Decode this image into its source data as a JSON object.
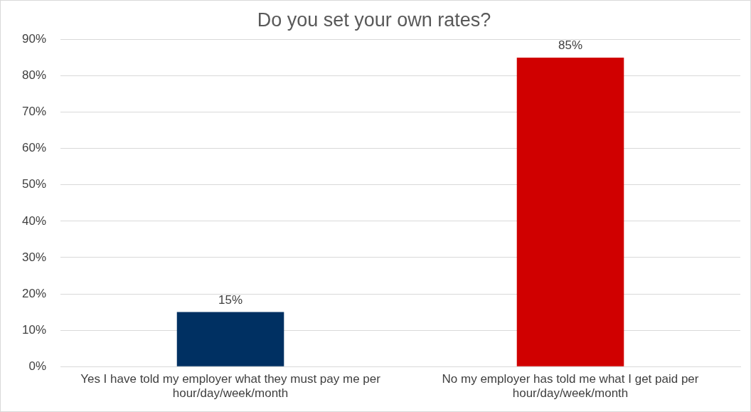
{
  "chart_data": {
    "type": "bar",
    "title": "Do you set your own rates?",
    "categories": [
      "Yes I have told my employer what they must pay me per hour/day/week/month",
      "No my employer has told me what I get paid per hour/day/week/month"
    ],
    "values": [
      15,
      85
    ],
    "colors": [
      "#003062",
      "#d00000"
    ],
    "value_labels": [
      "15%",
      "85%"
    ],
    "ylim": [
      0,
      90
    ],
    "yticks": [
      {
        "value": 0,
        "label": "0%"
      },
      {
        "value": 10,
        "label": "10%"
      },
      {
        "value": 20,
        "label": "20%"
      },
      {
        "value": 30,
        "label": "30%"
      },
      {
        "value": 40,
        "label": "40%"
      },
      {
        "value": 50,
        "label": "50%"
      },
      {
        "value": 60,
        "label": "60%"
      },
      {
        "value": 70,
        "label": "70%"
      },
      {
        "value": 80,
        "label": "80%"
      },
      {
        "value": 90,
        "label": "90%"
      }
    ],
    "grid": "y",
    "legend": false
  }
}
